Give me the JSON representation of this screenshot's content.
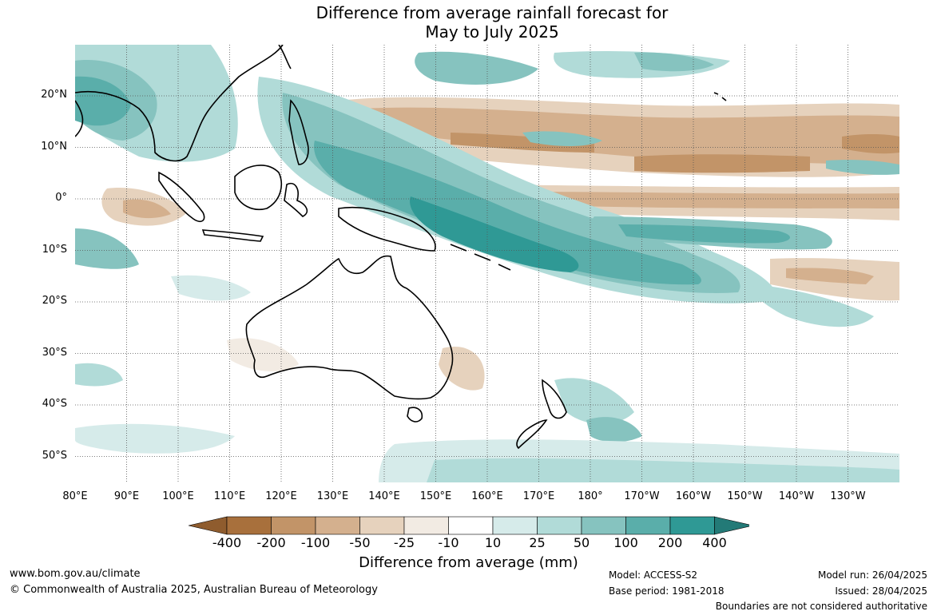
{
  "title": {
    "line1": "Difference from average rainfall forecast for",
    "line2": "May to July 2025"
  },
  "map": {
    "lon_labels": [
      "80°E",
      "90°E",
      "100°E",
      "110°E",
      "120°E",
      "130°E",
      "140°E",
      "150°E",
      "160°E",
      "170°E",
      "180°",
      "170°W",
      "160°W",
      "150°W",
      "140°W",
      "130°W"
    ],
    "lat_labels": [
      "20°N",
      "10°N",
      "0°",
      "10°S",
      "20°S",
      "30°S",
      "40°S",
      "50°S"
    ],
    "gridlines": true,
    "colors": {
      "dry_strong": "#a8703c",
      "dry_medium": "#c29468",
      "dry_light": "#d4b08e",
      "dry_faint": "#e6d2bd",
      "dry_trace": "#f2ebe3",
      "neutral": "#ffffff",
      "wet_trace": "#d6ebea",
      "wet_faint": "#b1dbd8",
      "wet_light": "#86c3bf",
      "wet_medium": "#5aaeaa",
      "wet_strong": "#2f9995",
      "coast": "#000000"
    }
  },
  "colorbar": {
    "labels": [
      "-400",
      "-200",
      "-100",
      "-50",
      "-25",
      "-10",
      "10",
      "25",
      "50",
      "100",
      "200",
      "400"
    ],
    "colors": [
      "#a8703c",
      "#c29468",
      "#d4b08e",
      "#e6d2bd",
      "#f2ebe3",
      "#ffffff",
      "#d6ebea",
      "#b1dbd8",
      "#86c3bf",
      "#5aaeaa",
      "#2f9995"
    ],
    "extend_low_color": "#8f5c2e",
    "extend_high_color": "#237a77",
    "title": "Difference from average (mm)"
  },
  "footer": {
    "website": "www.bom.gov.au/climate",
    "copyright": "© Commonwealth of Australia 2025, Australian Bureau of Meteorology",
    "model": "Model: ACCESS-S2",
    "base_period": "Base period: 1981-2018",
    "model_run": "Model run: 26/04/2025",
    "issued": "Issued: 28/04/2025",
    "disclaimer": "Boundaries are not considered authoritative"
  }
}
